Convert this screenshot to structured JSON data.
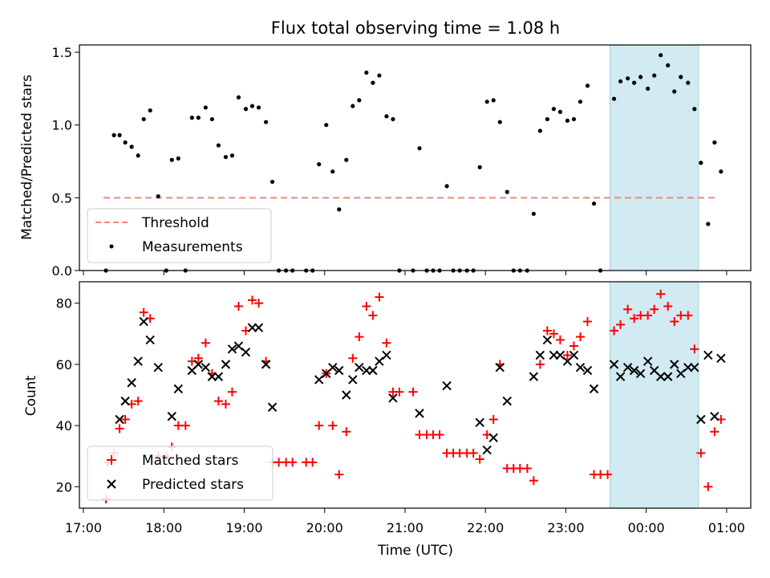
{
  "colors": {
    "threshold": "#ff7f7f",
    "measurements": "#000000",
    "matched": "#ff0000",
    "predicted": "#000000",
    "highlight": "#add8e6"
  },
  "chart_data": [
    {
      "type": "scatter",
      "title": "Flux total observing time = 1.08 h",
      "ylabel": "Matched/Predicted stars",
      "xlabel": "",
      "x_unit": "hours since 17:00 UTC",
      "xlim": [
        -0.05,
        8.3
      ],
      "ylim": [
        0,
        1.55
      ],
      "yticks": [
        0.0,
        0.5,
        1.0,
        1.5
      ],
      "ytick_labels": [
        "0.0",
        "0.5",
        "1.0",
        "1.5"
      ],
      "highlight_span": [
        6.55,
        7.65
      ],
      "threshold": {
        "name": "Threshold",
        "value": 0.5,
        "x_range": [
          0.25,
          7.9
        ]
      },
      "legend": [
        "Threshold",
        "Measurements"
      ],
      "legend_location": "lower-left",
      "series": [
        {
          "name": "Measurements",
          "marker": "dot",
          "points": [
            [
              0.28,
              0.0
            ],
            [
              0.38,
              0.93
            ],
            [
              0.45,
              0.93
            ],
            [
              0.52,
              0.88
            ],
            [
              0.6,
              0.85
            ],
            [
              0.68,
              0.79
            ],
            [
              0.75,
              1.04
            ],
            [
              0.83,
              1.1
            ],
            [
              0.93,
              0.51
            ],
            [
              1.03,
              0.0
            ],
            [
              1.1,
              0.76
            ],
            [
              1.18,
              0.77
            ],
            [
              1.27,
              0.0
            ],
            [
              1.35,
              1.05
            ],
            [
              1.43,
              1.05
            ],
            [
              1.52,
              1.12
            ],
            [
              1.6,
              1.04
            ],
            [
              1.68,
              0.86
            ],
            [
              1.77,
              0.78
            ],
            [
              1.85,
              0.79
            ],
            [
              1.93,
              1.19
            ],
            [
              2.02,
              1.11
            ],
            [
              2.1,
              1.13
            ],
            [
              2.18,
              1.12
            ],
            [
              2.27,
              1.02
            ],
            [
              2.35,
              0.61
            ],
            [
              2.43,
              0.0
            ],
            [
              2.52,
              0.0
            ],
            [
              2.6,
              0.0
            ],
            [
              2.77,
              0.0
            ],
            [
              2.85,
              0.0
            ],
            [
              2.93,
              0.73
            ],
            [
              3.02,
              1.0
            ],
            [
              3.1,
              0.68
            ],
            [
              3.18,
              0.42
            ],
            [
              3.27,
              0.76
            ],
            [
              3.35,
              1.13
            ],
            [
              3.43,
              1.17
            ],
            [
              3.52,
              1.36
            ],
            [
              3.6,
              1.29
            ],
            [
              3.68,
              1.34
            ],
            [
              3.77,
              1.06
            ],
            [
              3.85,
              1.04
            ],
            [
              3.93,
              0.0
            ],
            [
              4.1,
              0.0
            ],
            [
              4.18,
              0.84
            ],
            [
              4.27,
              0.0
            ],
            [
              4.35,
              0.0
            ],
            [
              4.43,
              0.0
            ],
            [
              4.52,
              0.58
            ],
            [
              4.6,
              0.0
            ],
            [
              4.68,
              0.0
            ],
            [
              4.77,
              0.0
            ],
            [
              4.85,
              0.0
            ],
            [
              4.93,
              0.71
            ],
            [
              5.02,
              1.16
            ],
            [
              5.1,
              1.17
            ],
            [
              5.18,
              1.02
            ],
            [
              5.27,
              0.54
            ],
            [
              5.35,
              0.0
            ],
            [
              5.43,
              0.0
            ],
            [
              5.52,
              0.0
            ],
            [
              5.6,
              0.39
            ],
            [
              5.68,
              0.96
            ],
            [
              5.77,
              1.04
            ],
            [
              5.85,
              1.11
            ],
            [
              5.93,
              1.09
            ],
            [
              6.02,
              1.03
            ],
            [
              6.1,
              1.04
            ],
            [
              6.18,
              1.16
            ],
            [
              6.27,
              1.27
            ],
            [
              6.35,
              0.46
            ],
            [
              6.43,
              0.0
            ],
            [
              6.6,
              1.18
            ],
            [
              6.68,
              1.3
            ],
            [
              6.77,
              1.32
            ],
            [
              6.85,
              1.29
            ],
            [
              6.93,
              1.33
            ],
            [
              7.02,
              1.25
            ],
            [
              7.1,
              1.34
            ],
            [
              7.18,
              1.48
            ],
            [
              7.27,
              1.41
            ],
            [
              7.35,
              1.23
            ],
            [
              7.43,
              1.33
            ],
            [
              7.52,
              1.29
            ],
            [
              7.6,
              1.11
            ],
            [
              7.68,
              0.74
            ],
            [
              7.77,
              0.32
            ],
            [
              7.85,
              0.88
            ],
            [
              7.93,
              0.68
            ]
          ]
        }
      ]
    },
    {
      "type": "scatter",
      "title": "",
      "xlabel": "Time (UTC)",
      "ylabel": "Count",
      "x_unit": "hours since 17:00 UTC",
      "xlim": [
        -0.05,
        8.3
      ],
      "ylim": [
        13,
        87
      ],
      "xticks": [
        0,
        1,
        2,
        3,
        4,
        5,
        6,
        7,
        8
      ],
      "xtick_labels": [
        "17:00",
        "18:00",
        "19:00",
        "20:00",
        "21:00",
        "22:00",
        "23:00",
        "00:00",
        "01:00"
      ],
      "yticks": [
        20,
        40,
        60,
        80
      ],
      "ytick_labels": [
        "20",
        "40",
        "60",
        "80"
      ],
      "highlight_span": [
        6.55,
        7.65
      ],
      "legend": [
        "Matched stars",
        "Predicted stars"
      ],
      "legend_location": "lower-left",
      "series": [
        {
          "name": "Matched stars",
          "marker": "plus",
          "points": [
            [
              0.28,
              16
            ],
            [
              0.3,
              28
            ],
            [
              0.38,
              31
            ],
            [
              0.45,
              39
            ],
            [
              0.52,
              42
            ],
            [
              0.6,
              47
            ],
            [
              0.68,
              48
            ],
            [
              0.75,
              77
            ],
            [
              0.83,
              75
            ],
            [
              0.93,
              30
            ],
            [
              1.03,
              30
            ],
            [
              1.1,
              33
            ],
            [
              1.18,
              40
            ],
            [
              1.27,
              40
            ],
            [
              1.35,
              61
            ],
            [
              1.43,
              62
            ],
            [
              1.52,
              67
            ],
            [
              1.6,
              57
            ],
            [
              1.68,
              48
            ],
            [
              1.77,
              47
            ],
            [
              1.85,
              51
            ],
            [
              1.93,
              79
            ],
            [
              2.02,
              71
            ],
            [
              2.1,
              81
            ],
            [
              2.18,
              80
            ],
            [
              2.27,
              61
            ],
            [
              2.35,
              28
            ],
            [
              2.43,
              28
            ],
            [
              2.52,
              28
            ],
            [
              2.6,
              28
            ],
            [
              2.77,
              28
            ],
            [
              2.85,
              28
            ],
            [
              2.93,
              40
            ],
            [
              3.02,
              57
            ],
            [
              3.1,
              40
            ],
            [
              3.18,
              24
            ],
            [
              3.27,
              38
            ],
            [
              3.35,
              62
            ],
            [
              3.43,
              69
            ],
            [
              3.52,
              79
            ],
            [
              3.6,
              76
            ],
            [
              3.68,
              82
            ],
            [
              3.77,
              67
            ],
            [
              3.85,
              51
            ],
            [
              3.93,
              51
            ],
            [
              4.1,
              51
            ],
            [
              4.18,
              37
            ],
            [
              4.27,
              37
            ],
            [
              4.35,
              37
            ],
            [
              4.43,
              37
            ],
            [
              4.52,
              31
            ],
            [
              4.6,
              31
            ],
            [
              4.68,
              31
            ],
            [
              4.77,
              31
            ],
            [
              4.85,
              31
            ],
            [
              4.93,
              29
            ],
            [
              5.02,
              37
            ],
            [
              5.1,
              42
            ],
            [
              5.18,
              60
            ],
            [
              5.27,
              26
            ],
            [
              5.35,
              26
            ],
            [
              5.43,
              26
            ],
            [
              5.52,
              26
            ],
            [
              5.6,
              22
            ],
            [
              5.68,
              60
            ],
            [
              5.77,
              71
            ],
            [
              5.85,
              70
            ],
            [
              5.93,
              68
            ],
            [
              6.02,
              63
            ],
            [
              6.1,
              66
            ],
            [
              6.18,
              69
            ],
            [
              6.27,
              74
            ],
            [
              6.35,
              24
            ],
            [
              6.43,
              24
            ],
            [
              6.52,
              24
            ],
            [
              6.6,
              71
            ],
            [
              6.68,
              73
            ],
            [
              6.77,
              78
            ],
            [
              6.85,
              75
            ],
            [
              6.93,
              76
            ],
            [
              7.02,
              76
            ],
            [
              7.1,
              78
            ],
            [
              7.18,
              83
            ],
            [
              7.27,
              79
            ],
            [
              7.35,
              74
            ],
            [
              7.43,
              76
            ],
            [
              7.52,
              76
            ],
            [
              7.6,
              65
            ],
            [
              7.68,
              31
            ],
            [
              7.77,
              20
            ],
            [
              7.85,
              38
            ],
            [
              7.93,
              42
            ]
          ]
        },
        {
          "name": "Predicted stars",
          "marker": "x",
          "points": [
            [
              0.45,
              42
            ],
            [
              0.52,
              48
            ],
            [
              0.6,
              54
            ],
            [
              0.68,
              61
            ],
            [
              0.75,
              74
            ],
            [
              0.83,
              68
            ],
            [
              0.93,
              59
            ],
            [
              1.1,
              43
            ],
            [
              1.18,
              52
            ],
            [
              1.35,
              58
            ],
            [
              1.43,
              60
            ],
            [
              1.52,
              59
            ],
            [
              1.6,
              56
            ],
            [
              1.68,
              56
            ],
            [
              1.77,
              60
            ],
            [
              1.85,
              65
            ],
            [
              1.93,
              66
            ],
            [
              2.02,
              64
            ],
            [
              2.1,
              72
            ],
            [
              2.18,
              72
            ],
            [
              2.27,
              60
            ],
            [
              2.35,
              46
            ],
            [
              2.93,
              55
            ],
            [
              3.02,
              57
            ],
            [
              3.1,
              59
            ],
            [
              3.18,
              58
            ],
            [
              3.27,
              50
            ],
            [
              3.35,
              55
            ],
            [
              3.43,
              59
            ],
            [
              3.52,
              58
            ],
            [
              3.6,
              58
            ],
            [
              3.68,
              61
            ],
            [
              3.77,
              63
            ],
            [
              3.85,
              49
            ],
            [
              4.18,
              44
            ],
            [
              4.52,
              53
            ],
            [
              4.93,
              41
            ],
            [
              5.02,
              32
            ],
            [
              5.1,
              36
            ],
            [
              5.18,
              59
            ],
            [
              5.27,
              48
            ],
            [
              5.6,
              56
            ],
            [
              5.68,
              63
            ],
            [
              5.77,
              68
            ],
            [
              5.85,
              63
            ],
            [
              5.93,
              63
            ],
            [
              6.02,
              61
            ],
            [
              6.1,
              63
            ],
            [
              6.18,
              59
            ],
            [
              6.27,
              58
            ],
            [
              6.35,
              52
            ],
            [
              6.6,
              60
            ],
            [
              6.68,
              56
            ],
            [
              6.77,
              59
            ],
            [
              6.85,
              58
            ],
            [
              6.93,
              57
            ],
            [
              7.02,
              61
            ],
            [
              7.1,
              58
            ],
            [
              7.18,
              56
            ],
            [
              7.27,
              56
            ],
            [
              7.35,
              60
            ],
            [
              7.43,
              57
            ],
            [
              7.52,
              59
            ],
            [
              7.6,
              59
            ],
            [
              7.68,
              42
            ],
            [
              7.77,
              63
            ],
            [
              7.85,
              43
            ],
            [
              7.93,
              62
            ]
          ]
        }
      ]
    }
  ]
}
